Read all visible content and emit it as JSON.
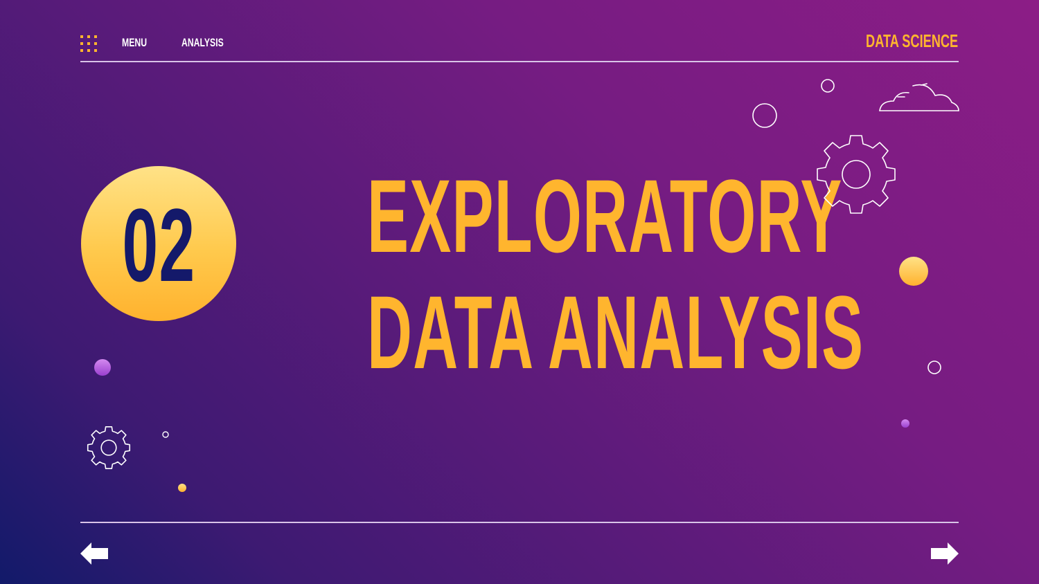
{
  "nav": {
    "menu_icon": "grid-icon",
    "menu_label": "MENU",
    "analysis_label": "ANALYSIS",
    "brand": "DATA SCIENCE"
  },
  "section": {
    "number": "02",
    "title_line1": "EXPLORATORY",
    "title_line2": "DATA ANALYSIS"
  },
  "footer": {
    "prev_icon": "arrow-left-icon",
    "next_icon": "arrow-right-icon"
  },
  "colors": {
    "accent": "#ffb52e",
    "number_text": "#14196a",
    "background_start": "#121a6a",
    "background_end": "#8c1d86",
    "line": "#d9c4e8"
  }
}
